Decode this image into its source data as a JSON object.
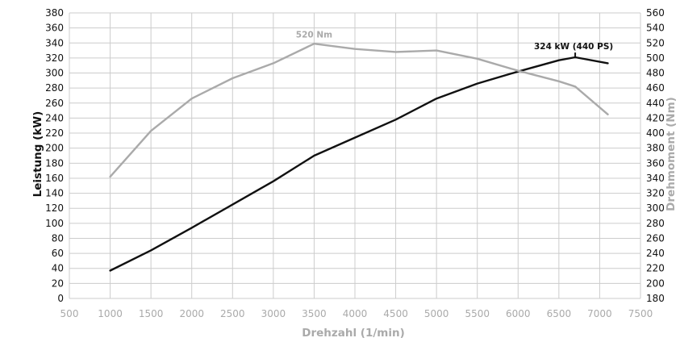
{
  "chart_data": {
    "type": "line",
    "xlabel": "Drehzahl (1/min)",
    "ylabel": "Leistung (kW)",
    "ylabel_right": "Drehmoment (Nm)",
    "xlim": [
      500,
      7500
    ],
    "ylim": [
      0,
      380
    ],
    "ylim_right": [
      180,
      560
    ],
    "x_ticks": [
      500,
      1000,
      1500,
      2000,
      2500,
      3000,
      3500,
      4000,
      4500,
      5000,
      5500,
      6000,
      6500,
      7000,
      7500
    ],
    "y_ticks": [
      0,
      20,
      40,
      60,
      80,
      100,
      120,
      140,
      160,
      180,
      200,
      220,
      240,
      260,
      280,
      300,
      320,
      340,
      360,
      380
    ],
    "y_ticks_right": [
      180,
      200,
      220,
      240,
      260,
      280,
      300,
      320,
      340,
      360,
      380,
      400,
      420,
      440,
      460,
      480,
      500,
      520,
      540,
      560
    ],
    "grid": true,
    "colors": {
      "power": "#111111",
      "torque": "#aaaaaa",
      "grid": "#cccccc"
    },
    "series": [
      {
        "axis": "left",
        "color": "#111111",
        "x": [
          1000,
          1500,
          2000,
          2500,
          3000,
          3500,
          4000,
          4500,
          5000,
          5500,
          6000,
          6500,
          6700,
          7100
        ],
        "y": [
          37,
          64,
          94,
          125,
          156,
          190,
          214,
          238,
          266,
          286,
          302,
          317,
          321,
          313
        ]
      },
      {
        "axis": "right",
        "color": "#aaaaaa",
        "x": [
          1000,
          1500,
          2000,
          2500,
          3000,
          3500,
          4000,
          4500,
          5000,
          5500,
          6000,
          6500,
          6700,
          7100
        ],
        "y": [
          342,
          403,
          446,
          473,
          493,
          519,
          512,
          508,
          510,
          499,
          483,
          469,
          462,
          425
        ]
      }
    ],
    "annotations": [
      {
        "text": "520 Nm",
        "x": 3500,
        "y": 520,
        "axis": "right",
        "color": "#aaaaaa"
      },
      {
        "text": "324 kW (440 PS)",
        "x": 6700,
        "y": 324,
        "axis": "left",
        "color": "#111111"
      }
    ]
  }
}
